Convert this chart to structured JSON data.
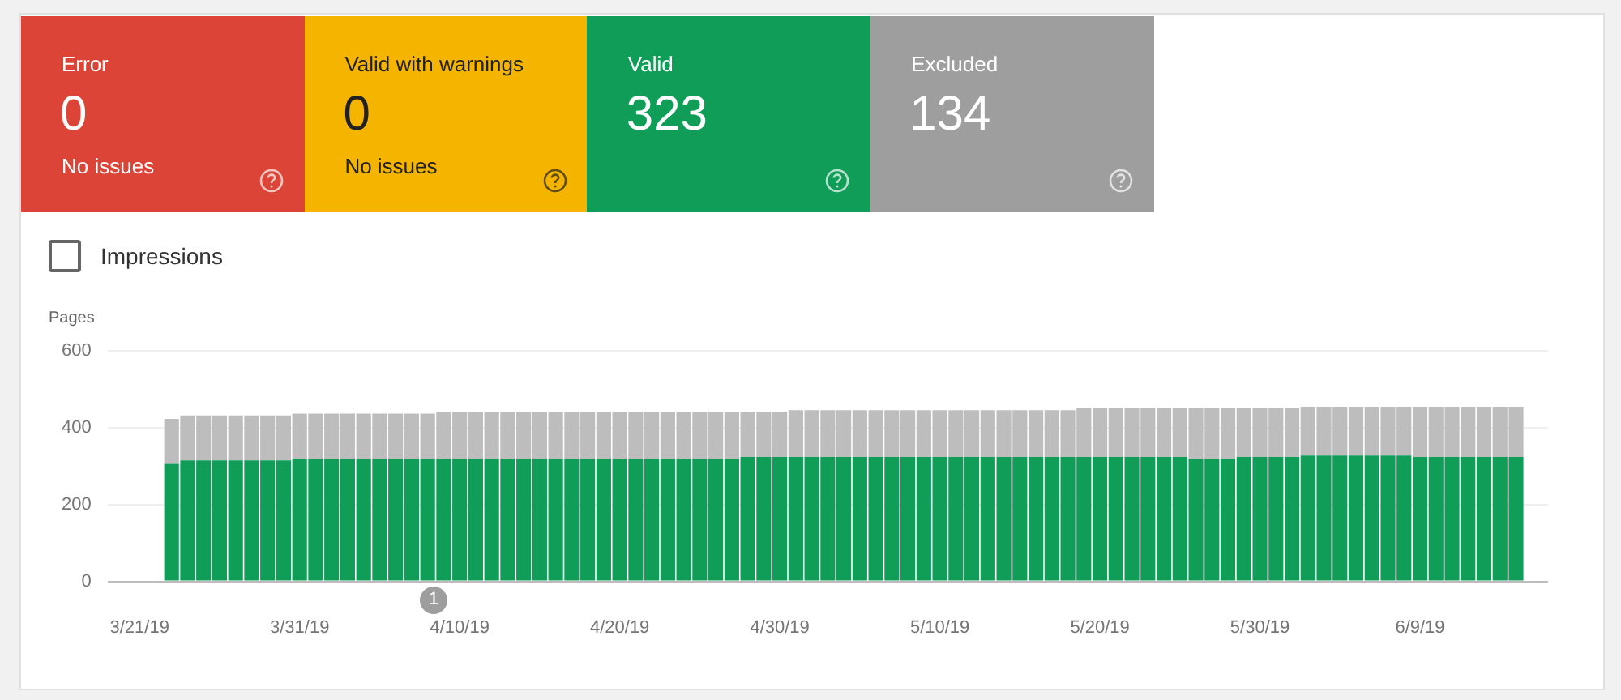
{
  "chart_data": [
    {
      "type": "other",
      "categories": [
        "Error",
        "Valid with warnings",
        "Valid",
        "Excluded"
      ],
      "values": [
        0,
        0,
        323,
        134
      ],
      "data_labels": true,
      "colors": [
        "#db4437",
        "#f4b400",
        "#0f9d58",
        "#9e9e9e"
      ],
      "annotations": [
        {
          "text": "No issues",
          "x": "Error"
        },
        {
          "text": "No issues",
          "x": "Valid with warnings"
        }
      ]
    },
    {
      "type": "bar",
      "stacked": true,
      "ylabel": "Pages",
      "ylim": [
        0,
        600
      ],
      "yticks": [
        0,
        200,
        400,
        600
      ],
      "grid": "y",
      "legend": false,
      "xlim": [
        "--03-19",
        "--06-17"
      ],
      "xticks": [
        {
          "value": "--03-21",
          "label": "3/21/19"
        },
        {
          "value": "--03-31",
          "label": "3/31/19"
        },
        {
          "value": "--04-10",
          "label": "4/10/19"
        },
        {
          "value": "--04-20",
          "label": "4/20/19"
        },
        {
          "value": "--04-30",
          "label": "4/30/19"
        },
        {
          "value": "--05-10",
          "label": "5/10/19"
        },
        {
          "value": "--05-20",
          "label": "5/20/19"
        },
        {
          "value": "--05-30",
          "label": "5/30/19"
        },
        {
          "value": "--06-09",
          "label": "6/9/19"
        }
      ],
      "x": [
        "--03-23",
        "--03-24",
        "--03-25",
        "--03-26",
        "--03-27",
        "--03-28",
        "--03-29",
        "--03-30",
        "--03-31",
        "--04-01",
        "--04-02",
        "--04-03",
        "--04-04",
        "--04-05",
        "--04-06",
        "--04-07",
        "--04-08",
        "--04-09",
        "--04-10",
        "--04-11",
        "--04-12",
        "--04-13",
        "--04-14",
        "--04-15",
        "--04-16",
        "--04-17",
        "--04-18",
        "--04-19",
        "--04-20",
        "--04-21",
        "--04-22",
        "--04-23",
        "--04-24",
        "--04-25",
        "--04-26",
        "--04-27",
        "--04-28",
        "--04-29",
        "--04-30",
        "--05-01",
        "--05-02",
        "--05-03",
        "--05-04",
        "--05-05",
        "--05-06",
        "--05-07",
        "--05-08",
        "--05-09",
        "--05-10",
        "--05-11",
        "--05-12",
        "--05-13",
        "--05-14",
        "--05-15",
        "--05-16",
        "--05-17",
        "--05-18",
        "--05-19",
        "--05-20",
        "--05-21",
        "--05-22",
        "--05-23",
        "--05-24",
        "--05-25",
        "--05-26",
        "--05-27",
        "--05-28",
        "--05-29",
        "--05-30",
        "--05-31",
        "--06-01",
        "--06-02",
        "--06-03",
        "--06-04",
        "--06-05",
        "--06-06",
        "--06-07",
        "--06-08",
        "--06-09",
        "--06-10",
        "--06-11",
        "--06-12",
        "--06-13",
        "--06-14",
        "--06-15"
      ],
      "series": [
        {
          "color": "#0f9d58",
          "values": [
            306,
            315,
            315,
            315,
            315,
            315,
            315,
            315,
            320,
            320,
            320,
            320,
            320,
            320,
            320,
            320,
            320,
            320,
            320,
            320,
            320,
            320,
            320,
            320,
            320,
            320,
            320,
            320,
            320,
            320,
            320,
            320,
            320,
            320,
            320,
            320,
            324,
            324,
            324,
            324,
            324,
            324,
            324,
            324,
            324,
            324,
            324,
            324,
            324,
            324,
            324,
            324,
            324,
            324,
            324,
            324,
            324,
            324,
            324,
            324,
            324,
            324,
            324,
            324,
            320,
            320,
            320,
            324,
            324,
            324,
            324,
            328,
            328,
            328,
            328,
            328,
            328,
            328,
            324,
            324,
            324,
            324,
            324,
            324,
            324
          ]
        },
        {
          "color": "#bdbdbd",
          "values": [
            117,
            117,
            117,
            117,
            117,
            117,
            117,
            117,
            117,
            117,
            117,
            117,
            117,
            117,
            117,
            117,
            117,
            121,
            121,
            121,
            121,
            121,
            121,
            121,
            121,
            121,
            121,
            121,
            121,
            121,
            121,
            121,
            121,
            121,
            121,
            121,
            118,
            118,
            118,
            122,
            122,
            122,
            122,
            122,
            122,
            122,
            122,
            122,
            122,
            122,
            122,
            122,
            122,
            122,
            122,
            122,
            122,
            127,
            127,
            127,
            127,
            127,
            127,
            127,
            131,
            131,
            131,
            127,
            127,
            127,
            127,
            127,
            127,
            127,
            127,
            127,
            127,
            127,
            131,
            131,
            131,
            131,
            131,
            131,
            131
          ]
        }
      ],
      "annotations": [
        "Impressions",
        "1"
      ]
    }
  ]
}
